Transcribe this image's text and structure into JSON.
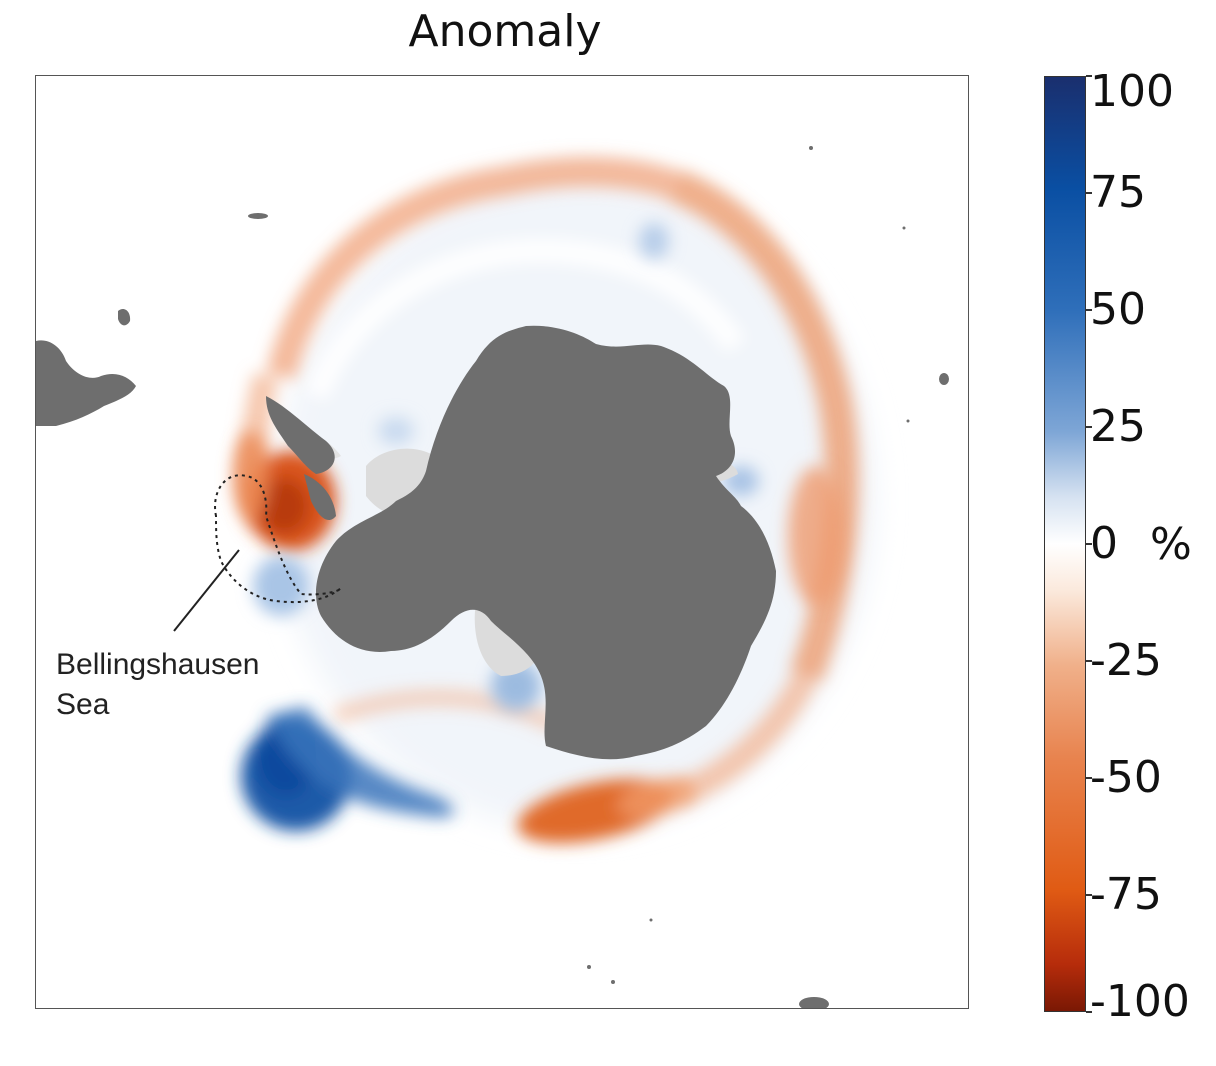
{
  "title": "Anomaly",
  "annotation": {
    "line1": "Bellingshausen",
    "line2": "Sea"
  },
  "colorbar": {
    "unit": "%",
    "min": -100,
    "max": 100,
    "ticks": [
      {
        "value": 100,
        "label": "100"
      },
      {
        "value": 75,
        "label": "75"
      },
      {
        "value": 50,
        "label": "50"
      },
      {
        "value": 25,
        "label": "25"
      },
      {
        "value": 0,
        "label": "0"
      },
      {
        "value": -25,
        "label": "-25"
      },
      {
        "value": -50,
        "label": "-50"
      },
      {
        "value": -75,
        "label": "-75"
      },
      {
        "value": -100,
        "label": "-100"
      }
    ]
  },
  "colors": {
    "land": "#6e6e6e",
    "ice_shelf": "#dcdcdc",
    "strong_negative": "#d2480f",
    "negative": "#ee9a6e",
    "strong_positive": "#0d4a9e",
    "positive": "#8db3de"
  }
}
